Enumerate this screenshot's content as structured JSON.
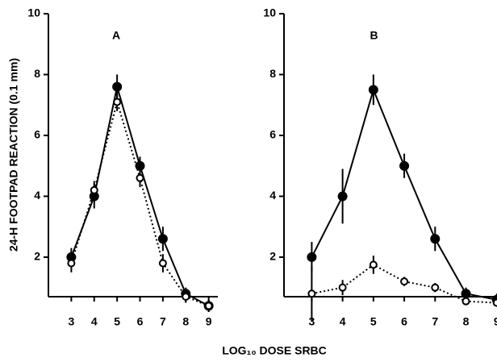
{
  "chart_data": [
    {
      "type": "line",
      "title": "A",
      "ylabel": "24-H FOOTPAD REACTION (0.1 mm)",
      "xlabel": "LOG₁₀ DOSE SRBC",
      "x": [
        3,
        4,
        5,
        6,
        7,
        8,
        9
      ],
      "series": [
        {
          "color": "#000000",
          "marker": "filled",
          "linestyle": "solid",
          "values": [
            2.0,
            4.0,
            7.6,
            5.0,
            2.6,
            0.8,
            0.4
          ],
          "errors": [
            0.3,
            0.4,
            0.4,
            0.3,
            0.4,
            0.2,
            0.2
          ]
        },
        {
          "color": "#000000",
          "marker": "open",
          "linestyle": "dotted",
          "values": [
            1.8,
            4.2,
            7.1,
            4.6,
            1.8,
            0.7,
            0.4
          ],
          "errors": [
            0.3,
            0.3,
            0.3,
            0.3,
            0.3,
            0.2,
            0.2
          ]
        }
      ],
      "xlim": [
        2,
        9.4
      ],
      "ylim": [
        0.7,
        10
      ],
      "xticks": [
        3,
        4,
        5,
        6,
        7,
        8,
        9
      ],
      "yticks": [
        2,
        4,
        6,
        8,
        10
      ]
    },
    {
      "type": "line",
      "title": "B",
      "x": [
        3,
        4,
        5,
        6,
        7,
        8,
        9
      ],
      "series": [
        {
          "color": "#000000",
          "marker": "filled",
          "linestyle": "solid",
          "values": [
            2.0,
            4.0,
            7.5,
            5.0,
            2.6,
            0.8,
            0.6
          ],
          "errors": [
            0.5,
            0.9,
            0.5,
            0.4,
            0.4,
            0.2,
            0.2
          ]
        },
        {
          "color": "#000000",
          "marker": "open",
          "linestyle": "dotted",
          "values": [
            0.8,
            1.0,
            1.75,
            1.2,
            1.0,
            0.55,
            0.5
          ],
          "errors": [
            0.9,
            0.25,
            0.3,
            0.15,
            0.15,
            0.1,
            0.1
          ]
        }
      ],
      "xlim": [
        2.1,
        9.4
      ],
      "ylim": [
        0.7,
        10
      ],
      "xticks": [
        3,
        4,
        5,
        6,
        7,
        8,
        9
      ],
      "yticks": [
        2,
        4,
        6,
        8,
        10
      ]
    }
  ]
}
